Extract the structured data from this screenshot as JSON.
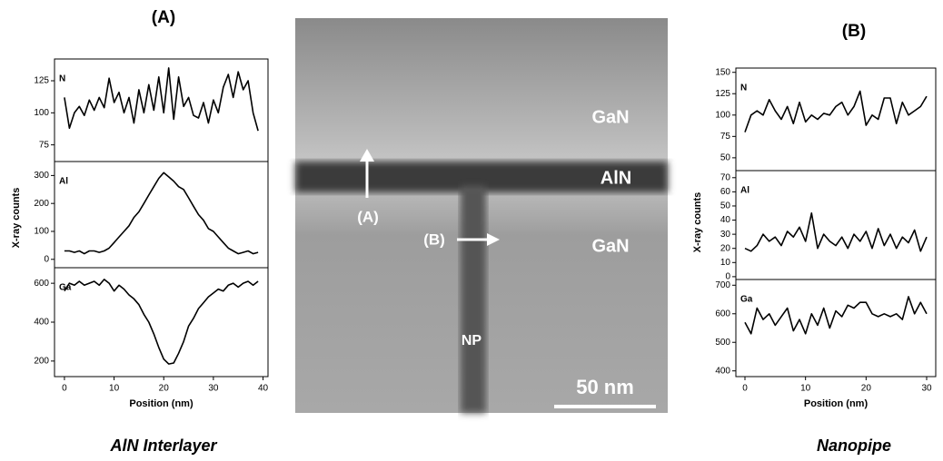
{
  "chart_data": [
    {
      "type": "line",
      "title": "(A)",
      "caption": "AlN Interlayer",
      "xlabel": "Position (nm)",
      "ylabel": "X-ray counts",
      "x": [
        0,
        1,
        2,
        3,
        4,
        5,
        6,
        7,
        8,
        9,
        10,
        11,
        12,
        13,
        14,
        15,
        16,
        17,
        18,
        19,
        20,
        21,
        22,
        23,
        24,
        25,
        26,
        27,
        28,
        29,
        30,
        31,
        32,
        33,
        34,
        35,
        36,
        37,
        38,
        39
      ],
      "xlim": [
        -2,
        41
      ],
      "xticks": [
        0,
        10,
        20,
        30,
        40
      ],
      "color": "#000000",
      "subplots": [
        {
          "name": "N",
          "ylim": [
            62,
            142
          ],
          "yticks": [
            75,
            100,
            125
          ],
          "values": [
            112,
            88,
            100,
            105,
            98,
            110,
            102,
            112,
            104,
            127,
            108,
            116,
            100,
            112,
            92,
            118,
            100,
            122,
            102,
            128,
            100,
            135,
            95,
            128,
            105,
            112,
            98,
            96,
            108,
            92,
            110,
            100,
            120,
            130,
            112,
            132,
            118,
            125,
            100,
            86
          ]
        },
        {
          "name": "Al",
          "ylim": [
            -30,
            350
          ],
          "yticks": [
            0,
            100,
            200,
            300
          ],
          "values": [
            30,
            30,
            25,
            30,
            20,
            30,
            30,
            25,
            30,
            40,
            60,
            80,
            100,
            120,
            150,
            170,
            200,
            230,
            260,
            290,
            310,
            295,
            280,
            260,
            250,
            220,
            190,
            160,
            140,
            110,
            100,
            80,
            60,
            40,
            30,
            20,
            25,
            30,
            20,
            25
          ]
        },
        {
          "name": "Ga",
          "ylim": [
            120,
            680
          ],
          "yticks": [
            200,
            400,
            600
          ],
          "values": [
            560,
            600,
            590,
            610,
            590,
            600,
            610,
            590,
            620,
            600,
            560,
            590,
            570,
            540,
            520,
            490,
            440,
            400,
            340,
            270,
            210,
            185,
            190,
            240,
            300,
            380,
            420,
            470,
            500,
            530,
            550,
            570,
            560,
            590,
            600,
            580,
            600,
            610,
            590,
            610
          ]
        }
      ]
    },
    {
      "type": "line",
      "title": "(B)",
      "caption": "Nanopipe",
      "xlabel": "Position (nm)",
      "ylabel": "X-ray counts",
      "x": [
        0,
        1,
        2,
        3,
        4,
        5,
        6,
        7,
        8,
        9,
        10,
        11,
        12,
        13,
        14,
        15,
        16,
        17,
        18,
        19,
        20,
        21,
        22,
        23,
        24,
        25,
        26,
        27,
        28,
        29,
        30
      ],
      "xlim": [
        -1.5,
        31.5
      ],
      "xticks": [
        0,
        10,
        20,
        30
      ],
      "color": "#000000",
      "subplots": [
        {
          "name": "N",
          "ylim": [
            35,
            155
          ],
          "yticks": [
            50,
            75,
            100,
            125,
            150
          ],
          "values": [
            80,
            100,
            105,
            100,
            118,
            105,
            95,
            110,
            90,
            115,
            92,
            100,
            95,
            102,
            100,
            110,
            115,
            100,
            110,
            128,
            88,
            100,
            95,
            120,
            120,
            90,
            115,
            100,
            105,
            110,
            122
          ]
        },
        {
          "name": "Al",
          "ylim": [
            -2,
            75
          ],
          "yticks": [
            0,
            10,
            20,
            30,
            40,
            50,
            60,
            70
          ],
          "values": [
            20,
            18,
            22,
            30,
            25,
            28,
            22,
            32,
            28,
            35,
            25,
            45,
            20,
            30,
            25,
            22,
            28,
            20,
            30,
            25,
            32,
            20,
            34,
            22,
            30,
            20,
            28,
            24,
            33,
            18,
            28
          ]
        },
        {
          "name": "Ga",
          "ylim": [
            380,
            720
          ],
          "yticks": [
            400,
            500,
            600,
            700
          ],
          "values": [
            570,
            530,
            620,
            580,
            600,
            560,
            590,
            620,
            540,
            580,
            530,
            600,
            560,
            620,
            550,
            610,
            590,
            630,
            620,
            640,
            640,
            600,
            590,
            600,
            590,
            600,
            580,
            660,
            600,
            640,
            600
          ]
        }
      ]
    }
  ],
  "image": {
    "labels": [
      "GaN",
      "AlN",
      "GaN",
      "(A)",
      "(B)",
      "NP",
      "50 nm"
    ]
  }
}
